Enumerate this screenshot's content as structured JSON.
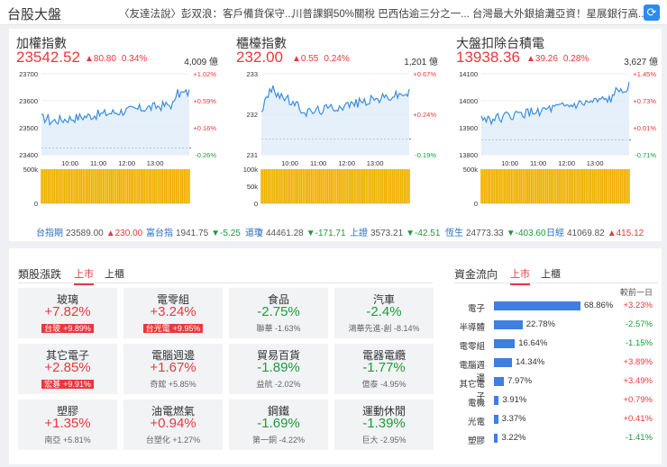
{
  "header": {
    "title": "台股大盤",
    "news": [
      "〈友達法說〉彭双浪：客戶備貨保守...",
      "川普課鋼50%關稅 巴西估逾三分之一...",
      "台灣最大外銀搶灘亞資！星展銀行高..."
    ]
  },
  "indices": [
    {
      "name": "加權指數",
      "value": "23542.52",
      "change": "▲80.80",
      "pct": "0.34%",
      "volume": "4,009 億",
      "y_ticks": [
        "23700",
        "23600",
        "23500",
        "23400"
      ],
      "right_ticks": [
        "+1.02%",
        "+0.59%",
        "+0.16%",
        "-0.26%"
      ],
      "x_ticks": [
        "10:00",
        "11:00",
        "12:00",
        "13:00"
      ],
      "vol_ticks": [
        "500k",
        "0"
      ]
    },
    {
      "name": "櫃檯指數",
      "value": "232.00",
      "change": "▲0.55",
      "pct": "0.24%",
      "volume": "1,201 億",
      "y_ticks": [
        "233",
        "232",
        "231"
      ],
      "right_ticks": [
        "+0.67%",
        "+0.24%",
        "-0.19%"
      ],
      "x_ticks": [
        "10:00",
        "11:00",
        "12:00",
        "13:00"
      ],
      "vol_ticks": [
        "100k",
        "50k",
        "0"
      ]
    },
    {
      "name": "大盤扣除台積電",
      "value": "13938.36",
      "change": "▲39.26",
      "pct": "0.28%",
      "volume": "3,627 億",
      "y_ticks": [
        "14100",
        "14000",
        "13900",
        "13800"
      ],
      "right_ticks": [
        "+1.45%",
        "+0.73%",
        "+0.01%",
        "-0.71%"
      ],
      "x_ticks": [
        "10:00",
        "11:00",
        "12:00",
        "13:00"
      ],
      "vol_ticks": [
        "500k",
        "0"
      ]
    }
  ],
  "futures": [
    {
      "name": "台指期",
      "value": "23589.00",
      "change": "▲230.00",
      "dir": "up"
    },
    {
      "name": "富台指",
      "value": "1941.75",
      "change": "▼-5.25",
      "dir": "down"
    },
    {
      "name": "道瓊",
      "value": "44461.28",
      "change": "▼-171.71",
      "dir": "down"
    },
    {
      "name": "上證",
      "value": "3573.21",
      "change": "▼-42.51",
      "dir": "down"
    },
    {
      "name": "恆生",
      "value": "24773.33",
      "change": "▼-403.60",
      "dir": "down"
    },
    {
      "name": "日經",
      "value": "41069.82",
      "change": "▲415.12",
      "dir": "up"
    }
  ],
  "sectors": {
    "title": "類股漲跌",
    "tabs": [
      "上市",
      "上櫃"
    ],
    "items": [
      {
        "name": "玻璃",
        "pct": "+7.82%",
        "dir": "up",
        "stock": "台玻",
        "stock_pct": "+9.89%",
        "hl": true
      },
      {
        "name": "電零組",
        "pct": "+3.24%",
        "dir": "up",
        "stock": "台光電",
        "stock_pct": "+9.95%",
        "hl": true
      },
      {
        "name": "食品",
        "pct": "-2.75%",
        "dir": "down",
        "stock": "聯華",
        "stock_pct": "-1.63%",
        "hl": false
      },
      {
        "name": "汽車",
        "pct": "-2.4%",
        "dir": "down",
        "stock": "鴻華先進-創",
        "stock_pct": "-8.14%",
        "hl": false
      },
      {
        "name": "其它電子",
        "pct": "+2.85%",
        "dir": "up",
        "stock": "宏碁",
        "stock_pct": "+9.91%",
        "hl": true
      },
      {
        "name": "電腦週邊",
        "pct": "+1.67%",
        "dir": "up",
        "stock": "奇鋐",
        "stock_pct": "+5.85%",
        "hl": false
      },
      {
        "name": "貿易百貨",
        "pct": "-1.89%",
        "dir": "down",
        "stock": "益航",
        "stock_pct": "-2.02%",
        "hl": false
      },
      {
        "name": "電器電纜",
        "pct": "-1.77%",
        "dir": "down",
        "stock": "億泰",
        "stock_pct": "-4.95%",
        "hl": false
      },
      {
        "name": "塑膠",
        "pct": "+1.35%",
        "dir": "up",
        "stock": "南亞",
        "stock_pct": "+5.81%",
        "hl": false
      },
      {
        "name": "油電燃氣",
        "pct": "+0.94%",
        "dir": "up",
        "stock": "台塑化",
        "stock_pct": "+1.27%",
        "hl": false
      },
      {
        "name": "鋼鐵",
        "pct": "-1.69%",
        "dir": "down",
        "stock": "第一銅",
        "stock_pct": "-4.22%",
        "hl": false
      },
      {
        "name": "運動休閒",
        "pct": "-1.39%",
        "dir": "down",
        "stock": "巨大",
        "stock_pct": "-2.95%",
        "hl": false
      }
    ]
  },
  "flow": {
    "title": "資金流向",
    "tabs": [
      "上市",
      "上櫃"
    ],
    "compare_label": "較前一日",
    "rows": [
      {
        "label": "電子",
        "pct": "68.86%",
        "value": 68.86,
        "delta": "+3.23%",
        "dir": "up"
      },
      {
        "label": "半導體",
        "pct": "22.78%",
        "value": 22.78,
        "delta": "-2.57%",
        "dir": "down"
      },
      {
        "label": "電零組",
        "pct": "16.64%",
        "value": 16.64,
        "delta": "-1.15%",
        "dir": "down"
      },
      {
        "label": "電腦週邊",
        "pct": "14.34%",
        "value": 14.34,
        "delta": "+3.89%",
        "dir": "up"
      },
      {
        "label": "其它電子",
        "pct": "7.97%",
        "value": 7.97,
        "delta": "+3.49%",
        "dir": "up"
      },
      {
        "label": "電機",
        "pct": "3.91%",
        "value": 3.91,
        "delta": "+0.79%",
        "dir": "up"
      },
      {
        "label": "光電",
        "pct": "3.37%",
        "value": 3.37,
        "delta": "+0.41%",
        "dir": "up"
      },
      {
        "label": "塑膠",
        "pct": "3.22%",
        "value": 3.22,
        "delta": "-1.41%",
        "dir": "down"
      }
    ]
  },
  "colors": {
    "up": "#e8383d",
    "down": "#1a9c3a",
    "line": "#3a8fdc",
    "volume": "#f0b000",
    "bar": "#3f7fe0"
  }
}
